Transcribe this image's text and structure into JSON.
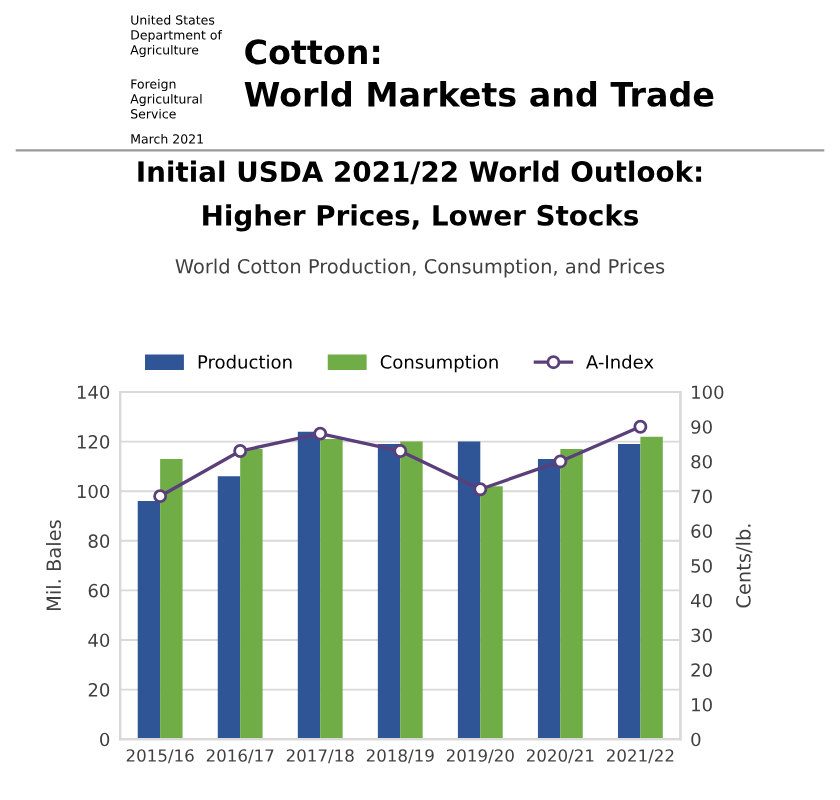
{
  "chart_data": {
    "type": "bar",
    "title": "Initial USDA 2021/22 World Outlook:\nHigher Prices, Lower Stocks",
    "subtitle": "World Cotton Production, Consumption, and Prices",
    "annotations": [
      "United States\nDepartment of\nAgriculture",
      "Foreign\nAgricultural\nService",
      "March 2021",
      "Cotton:\nWorld Markets and Trade"
    ],
    "categories": [
      "2015/16",
      "2016/17",
      "2017/18",
      "2018/19",
      "2019/20",
      "2020/21",
      "2021/22"
    ],
    "series": [
      {
        "name": "Production",
        "color": "#2f5597",
        "values": [
          96,
          106,
          124,
          119,
          120,
          113,
          119
        ]
      },
      {
        "name": "Consumption",
        "color": "#70ad47",
        "values": [
          113,
          117,
          121,
          120,
          102,
          117,
          122
        ]
      },
      {
        "name": "A-Index",
        "type": "line",
        "axis": "y2",
        "color": "#5b3f7a",
        "marker": "circle",
        "values": [
          70,
          83,
          88,
          83,
          72,
          80,
          90
        ]
      }
    ],
    "ylabel": "Mil. Bales",
    "y2label": "Cents/lb.",
    "ylim": [
      0,
      140
    ],
    "yticks": [
      0,
      20,
      40,
      60,
      80,
      100,
      120,
      140
    ],
    "y2lim": [
      0,
      100
    ],
    "y2ticks": [
      0,
      10,
      20,
      30,
      40,
      50,
      60,
      70,
      80,
      90,
      100
    ],
    "grid": "y",
    "legend": "top"
  }
}
